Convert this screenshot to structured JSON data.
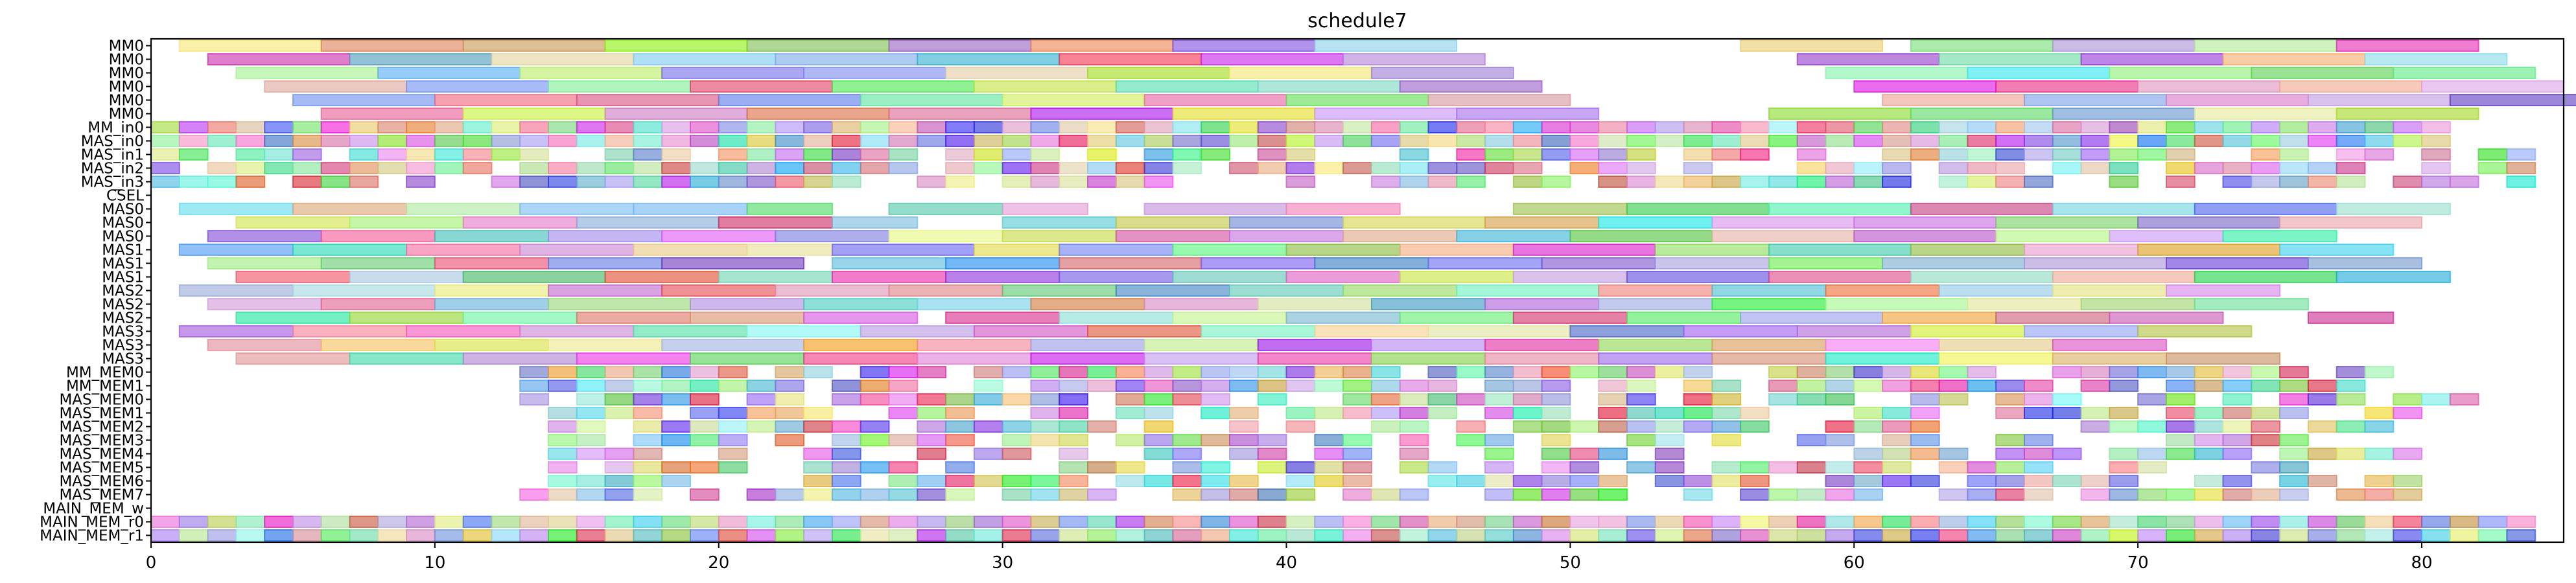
{
  "chart_data": {
    "type": "gantt",
    "title": "schedule7",
    "xlabel": "",
    "ylabel": "",
    "xlim": [
      0,
      85
    ],
    "x_ticks": [
      0,
      10,
      20,
      30,
      40,
      50,
      60,
      70,
      80
    ],
    "rows": [
      "MM0",
      "MM0",
      "MM0",
      "MM0",
      "MM0",
      "MM0",
      "MM_in0",
      "MAS_in0",
      "MAS_in1",
      "MAS_in2",
      "MAS_in3",
      "CSEL",
      "MAS0",
      "MAS0",
      "MAS0",
      "MAS1",
      "MAS1",
      "MAS1",
      "MAS2",
      "MAS2",
      "MAS2",
      "MAS3",
      "MAS3",
      "MAS3",
      "MM_MEM0",
      "MM_MEM1",
      "MAS_MEM0",
      "MAS_MEM1",
      "MAS_MEM2",
      "MAS_MEM3",
      "MAS_MEM4",
      "MAS_MEM5",
      "MAS_MEM6",
      "MAS_MEM7",
      "MAIN_MEM_w",
      "MAIN_MEM_r0",
      "MAIN_MEM_r1"
    ],
    "bar_style": "random pastel colours, semi-transparent with darker outlines",
    "notes": "Each row is a resource; each bar is a task interval [start, end] in time units. Values estimated from the axis."
  }
}
